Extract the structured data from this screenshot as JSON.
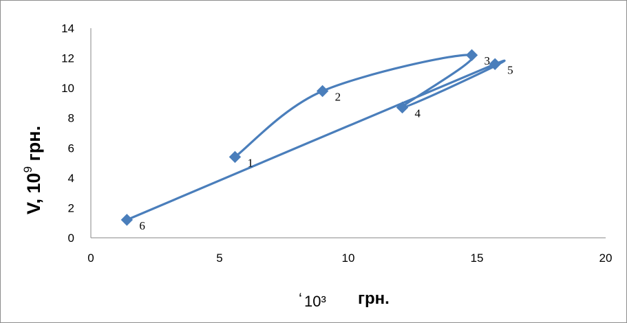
{
  "chart_data": {
    "type": "scatter",
    "xlim": [
      0,
      20
    ],
    "ylim": [
      0,
      14
    ],
    "x_ticks": [
      "0",
      "5",
      "10",
      "15",
      "20"
    ],
    "y_ticks": [
      "0",
      "2",
      "4",
      "6",
      "8",
      "10",
      "12",
      "14"
    ],
    "ylabel_main": "V, 10",
    "ylabel_exp": "9",
    "ylabel_unit": " грн.",
    "xlabel_prefix": "‘",
    "xlabel_exp": "10³",
    "xlabel_unit": "грн.",
    "grid": false,
    "series": [
      {
        "color": "#4a7ebb",
        "points": [
          {
            "label": "1",
            "x": 5.6,
            "y": 5.4
          },
          {
            "label": "2",
            "x": 9.0,
            "y": 9.8
          },
          {
            "label": "3",
            "x": 14.8,
            "y": 12.2
          },
          {
            "label": "4",
            "x": 12.1,
            "y": 8.7
          },
          {
            "label": "5",
            "x": 15.7,
            "y": 11.6
          },
          {
            "label": "6",
            "x": 1.4,
            "y": 1.2
          }
        ]
      }
    ]
  }
}
